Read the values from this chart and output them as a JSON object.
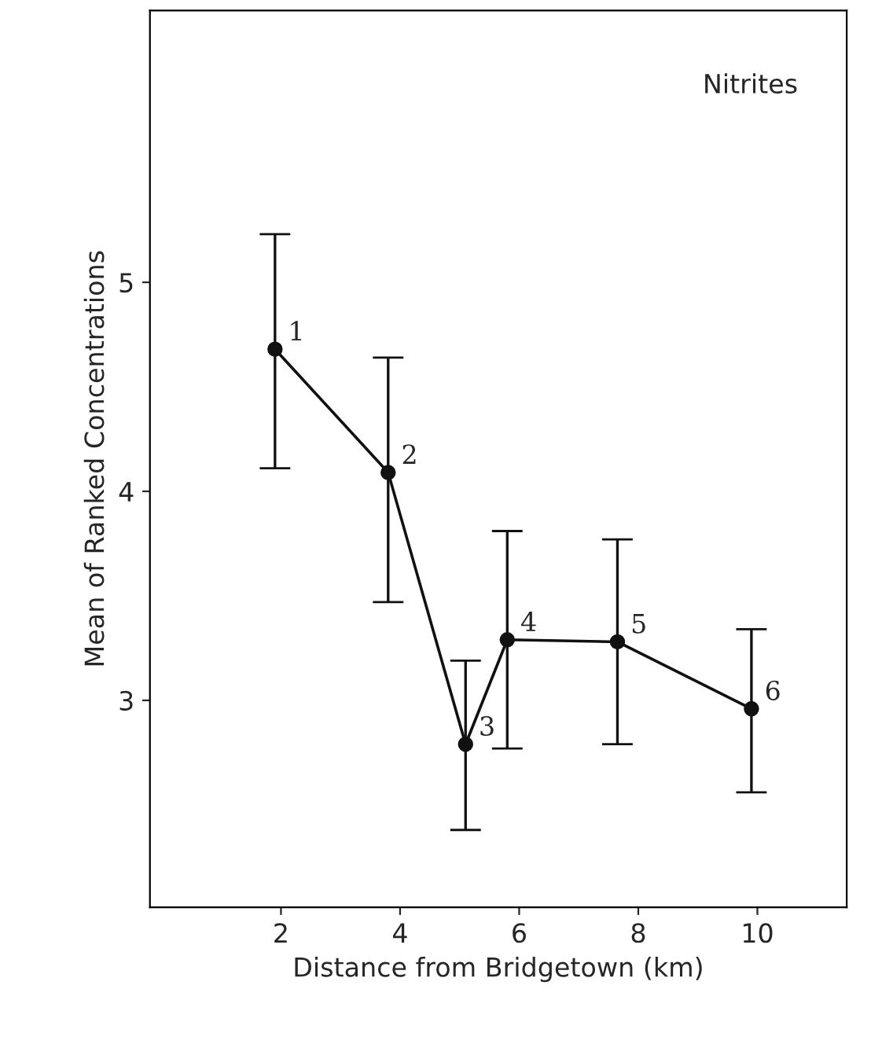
{
  "chart_data": {
    "type": "line",
    "xlabel": "Distance from Bridgetown (km)",
    "ylabel": "Mean of Ranked Concentrations",
    "x": [
      1.9,
      3.8,
      5.1,
      5.8,
      7.65,
      9.9
    ],
    "series": [
      {
        "color": "#111111",
        "values": [
          4.68,
          4.09,
          2.79,
          3.29,
          3.28,
          2.96
        ],
        "errors": [
          [
            4.11,
            5.23
          ],
          [
            3.47,
            4.64
          ],
          [
            2.38,
            3.19
          ],
          [
            2.77,
            3.81
          ],
          [
            2.79,
            3.77
          ],
          [
            2.56,
            3.34
          ]
        ]
      }
    ],
    "marker": "circle",
    "line_style": "solid",
    "grid": false,
    "legend": false,
    "xlim": [
      -0.2,
      11.5
    ],
    "ylim": [
      2.01,
      6.3
    ],
    "xticks": [
      2,
      4,
      6,
      8,
      10
    ],
    "yticks": [
      3,
      4,
      5
    ],
    "annotations": [
      {
        "text": "1",
        "x": 1.9,
        "y": 4.68
      },
      {
        "text": "2",
        "x": 3.8,
        "y": 4.09
      },
      {
        "text": "3",
        "x": 5.1,
        "y": 2.79
      },
      {
        "text": "4",
        "x": 5.8,
        "y": 3.29
      },
      {
        "text": "5",
        "x": 7.65,
        "y": 3.28
      },
      {
        "text": "6",
        "x": 9.9,
        "y": 2.96
      },
      "Nitrites"
    ]
  }
}
